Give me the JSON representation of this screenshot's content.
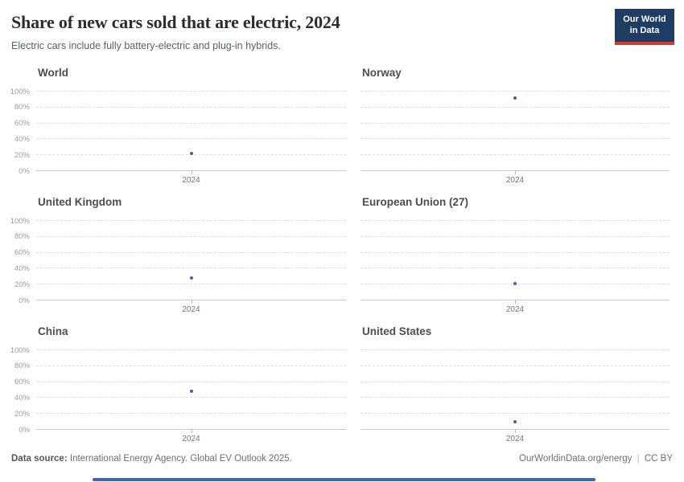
{
  "header": {
    "title": "Share of new cars sold that are electric, 2024",
    "subtitle": "Electric cars include fully battery-electric and plug-in hybrids."
  },
  "logo": {
    "line1": "Our World",
    "line2": "in Data",
    "bg_color": "#1d3d63",
    "accent_color": "#d03a34"
  },
  "chart_data": {
    "type": "scatter",
    "layout": "small-multiples-3x2",
    "title": "Share of new cars sold that are electric, 2024",
    "xlabel": "",
    "ylabel": "",
    "x_tick_label": "2024",
    "ylim": [
      0,
      100
    ],
    "y_ticks": [
      0,
      20,
      40,
      60,
      80,
      100
    ],
    "y_tick_labels": [
      "0%",
      "20%",
      "40%",
      "60%",
      "80%",
      "100%"
    ],
    "grid": "horizontal-dashed",
    "legend": "none",
    "point_color": "#4860a0",
    "series": [
      {
        "name": "World",
        "x": 2024,
        "value_percent": 22,
        "show_y_axis_labels": true
      },
      {
        "name": "Norway",
        "x": 2024,
        "value_percent": 92,
        "show_y_axis_labels": false
      },
      {
        "name": "United Kingdom",
        "x": 2024,
        "value_percent": 28,
        "show_y_axis_labels": true
      },
      {
        "name": "European Union (27)",
        "x": 2024,
        "value_percent": 21,
        "show_y_axis_labels": false
      },
      {
        "name": "China",
        "x": 2024,
        "value_percent": 48,
        "show_y_axis_labels": true
      },
      {
        "name": "United States",
        "x": 2024,
        "value_percent": 10,
        "show_y_axis_labels": false
      }
    ]
  },
  "footer": {
    "source_label": "Data source:",
    "source_text": "International Energy Agency. Global EV Outlook 2025.",
    "url": "OurWorldinData.org/energy",
    "separator": "|",
    "license": "CC BY"
  }
}
